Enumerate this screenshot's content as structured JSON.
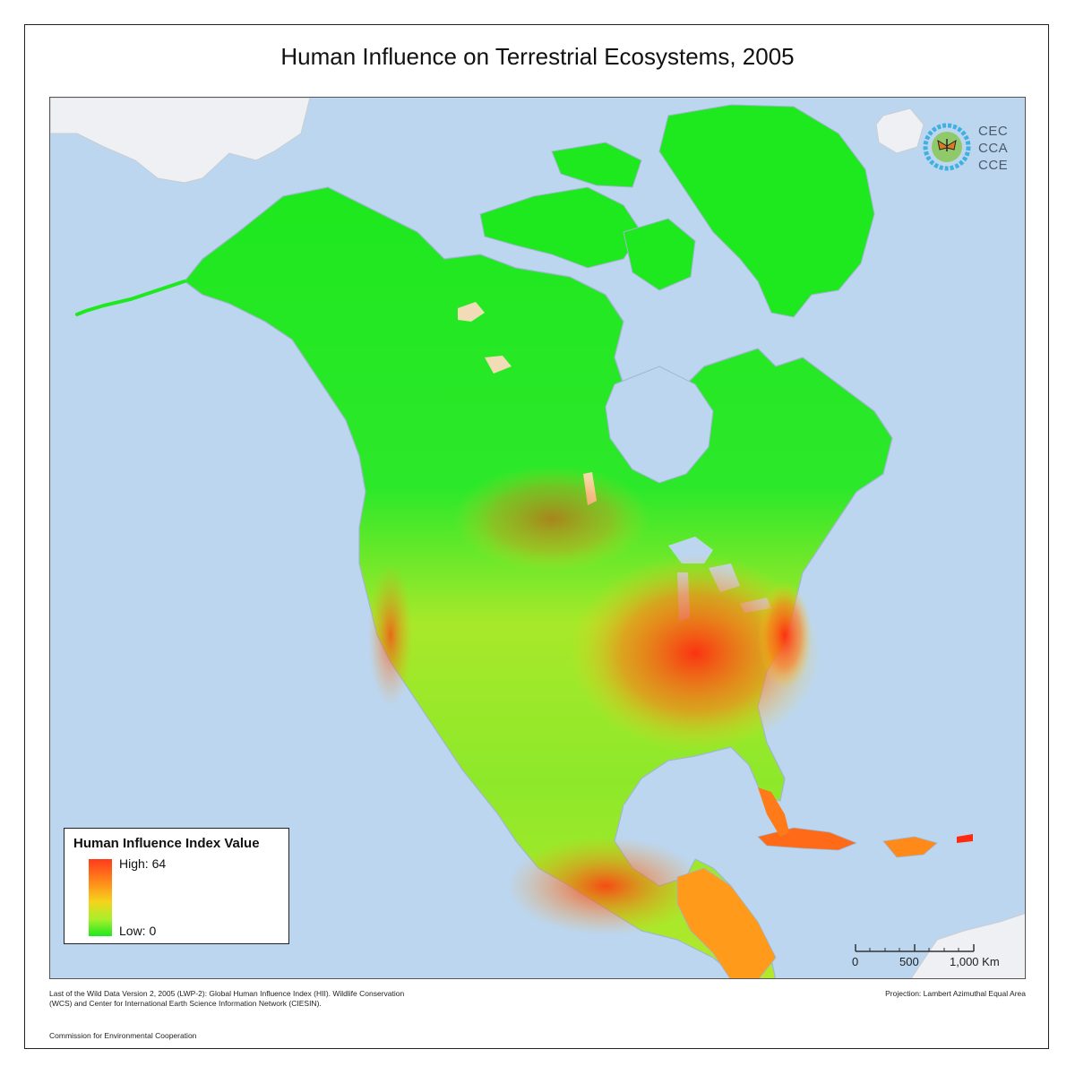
{
  "title": "Human Influence on Terrestrial Ecosystems, 2005",
  "logo": {
    "lines": [
      "CEC",
      "CCA",
      "CCE"
    ],
    "icon": "monarch-butterfly-globe-icon"
  },
  "legend": {
    "title": "Human Influence Index Value",
    "high_label": "High: 64",
    "low_label": "Low: 0",
    "high_value": 64,
    "low_value": 0,
    "ramp_colors": [
      "#ff3b1a",
      "#ff8a1a",
      "#f6d21c",
      "#a8f02a",
      "#1ee81e"
    ]
  },
  "scale_bar": {
    "labels": [
      "0",
      "500",
      "1,000 Km"
    ]
  },
  "credits": {
    "source": "Last of the Wild Data Version 2, 2005 (LWP-2): Global Human Influence Index (HII). Wildlife Conservation (WCS) and Center for International Earth Science Information Network (CIESIN).",
    "projection": "Projection: Lambert Azimuthal Equal Area",
    "organization": "Commission for Environmental Cooperation"
  },
  "colors": {
    "ocean": "#bcd6ef",
    "low_influence": "#1ee81e",
    "high_influence": "#ff2a10",
    "no_data_land": "#eef0f3",
    "lakes_no_data": "#f2dcb8"
  }
}
